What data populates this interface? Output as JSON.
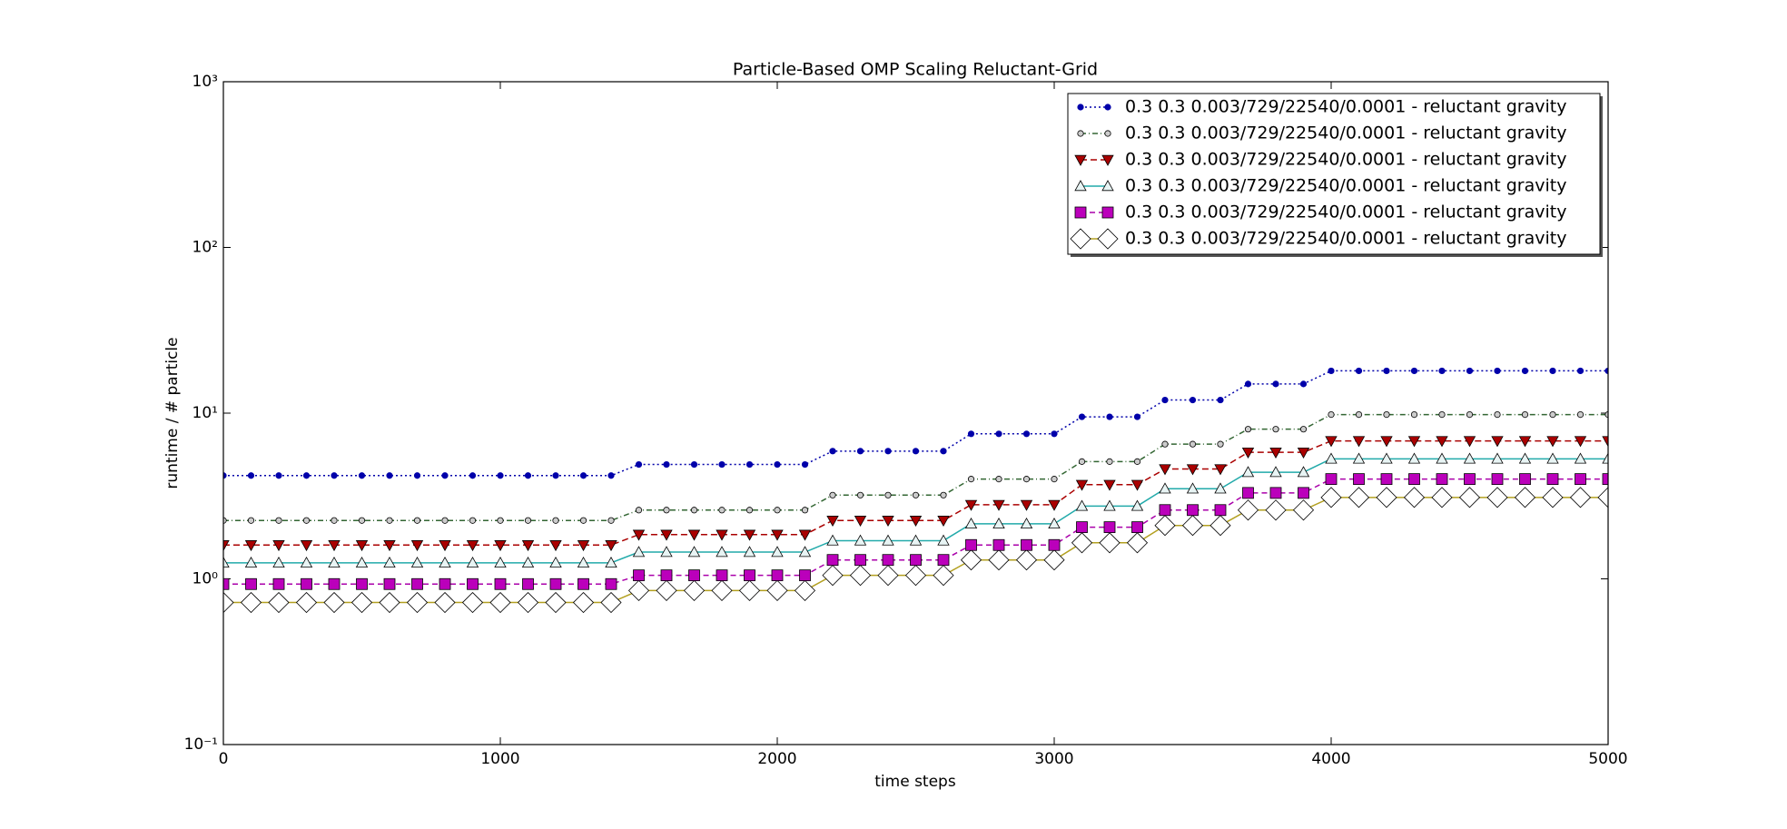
{
  "chart_data": {
    "type": "line",
    "title": "Particle-Based OMP Scaling Reluctant-Grid",
    "x_label": "time steps",
    "y_label": "runtime / # particle",
    "y_log": true,
    "legend": "upper right",
    "xlim": [
      0,
      5000
    ],
    "xticks": [
      0,
      1000,
      2000,
      3000,
      4000,
      5000
    ],
    "ylim": [
      0.1,
      1000
    ],
    "yticks": [
      {
        "value": 0.1,
        "label": "10⁻¹"
      },
      {
        "value": 1,
        "label": "10⁰"
      },
      {
        "value": 10,
        "label": "10¹"
      },
      {
        "value": 100,
        "label": "10²"
      },
      {
        "value": 1000,
        "label": "10³"
      }
    ],
    "x": [
      0,
      100,
      200,
      300,
      400,
      500,
      600,
      700,
      800,
      900,
      1000,
      1100,
      1200,
      1300,
      1400,
      1500,
      1600,
      1700,
      1800,
      1900,
      2000,
      2100,
      2200,
      2300,
      2400,
      2500,
      2600,
      2700,
      2800,
      2900,
      3000,
      3100,
      3200,
      3300,
      3400,
      3500,
      3600,
      3700,
      3800,
      3900,
      4000,
      4100,
      4200,
      4300,
      4400,
      4500,
      4600,
      4700,
      4800,
      4900,
      5000
    ],
    "series": [
      {
        "name": "0.3 0.3 0.003/729/22540/0.0001 - reluctant gravity",
        "color": "#0000aa",
        "marker": "circle",
        "marker_fill": "#0000aa",
        "marker_size": 4,
        "dash": "2,3",
        "values": [
          4.2,
          4.2,
          4.2,
          4.2,
          4.2,
          4.2,
          4.2,
          4.2,
          4.2,
          4.2,
          4.2,
          4.2,
          4.2,
          4.2,
          4.2,
          4.9,
          4.9,
          4.9,
          4.9,
          4.9,
          4.9,
          4.9,
          5.9,
          5.9,
          5.9,
          5.9,
          5.9,
          7.5,
          7.5,
          7.5,
          7.5,
          9.5,
          9.5,
          9.5,
          12,
          12,
          12,
          15,
          15,
          15,
          18,
          18,
          18,
          18,
          18,
          18,
          18,
          18,
          18,
          18,
          18
        ]
      },
      {
        "name": "0.3 0.3 0.003/729/22540/0.0001 - reluctant gravity",
        "color": "#336633",
        "marker": "circle",
        "marker_fill": "#cccccc",
        "marker_size": 4,
        "dash": "6,3,1,3",
        "values": [
          2.25,
          2.25,
          2.25,
          2.25,
          2.25,
          2.25,
          2.25,
          2.25,
          2.25,
          2.25,
          2.25,
          2.25,
          2.25,
          2.25,
          2.25,
          2.6,
          2.6,
          2.6,
          2.6,
          2.6,
          2.6,
          2.6,
          3.2,
          3.2,
          3.2,
          3.2,
          3.2,
          4.0,
          4.0,
          4.0,
          4.0,
          5.1,
          5.1,
          5.1,
          6.5,
          6.5,
          6.5,
          8.0,
          8.0,
          8.0,
          9.8,
          9.8,
          9.8,
          9.8,
          9.8,
          9.8,
          9.8,
          9.8,
          9.8,
          9.8,
          9.8
        ]
      },
      {
        "name": "0.3 0.3 0.003/729/22540/0.0001 - reluctant gravity",
        "color": "#aa0000",
        "marker": "triangle-down",
        "marker_fill": "#aa0000",
        "marker_size": 6,
        "dash": "7,4",
        "values": [
          1.6,
          1.6,
          1.6,
          1.6,
          1.6,
          1.6,
          1.6,
          1.6,
          1.6,
          1.6,
          1.6,
          1.6,
          1.6,
          1.6,
          1.6,
          1.85,
          1.85,
          1.85,
          1.85,
          1.85,
          1.85,
          1.85,
          2.25,
          2.25,
          2.25,
          2.25,
          2.25,
          2.8,
          2.8,
          2.8,
          2.8,
          3.7,
          3.7,
          3.7,
          4.6,
          4.6,
          4.6,
          5.8,
          5.8,
          5.8,
          6.8,
          6.8,
          6.8,
          6.8,
          6.8,
          6.8,
          6.8,
          6.8,
          6.8,
          6.8,
          6.8
        ]
      },
      {
        "name": "0.3 0.3 0.003/729/22540/0.0001 - reluctant gravity",
        "color": "#22aaaa",
        "marker": "triangle-up",
        "marker_fill": "#e8f4f4",
        "marker_size": 6,
        "dash": "none",
        "values": [
          1.25,
          1.25,
          1.25,
          1.25,
          1.25,
          1.25,
          1.25,
          1.25,
          1.25,
          1.25,
          1.25,
          1.25,
          1.25,
          1.25,
          1.25,
          1.45,
          1.45,
          1.45,
          1.45,
          1.45,
          1.45,
          1.45,
          1.7,
          1.7,
          1.7,
          1.7,
          1.7,
          2.15,
          2.15,
          2.15,
          2.15,
          2.75,
          2.75,
          2.75,
          3.5,
          3.5,
          3.5,
          4.4,
          4.4,
          4.4,
          5.3,
          5.3,
          5.3,
          5.3,
          5.3,
          5.3,
          5.3,
          5.3,
          5.3,
          5.3,
          5.3
        ]
      },
      {
        "name": "0.3 0.3 0.003/729/22540/0.0001 - reluctant gravity",
        "color": "#aa00aa",
        "marker": "square",
        "marker_fill": "#bb00bb",
        "marker_size": 6,
        "dash": "6,4",
        "values": [
          0.93,
          0.93,
          0.93,
          0.93,
          0.93,
          0.93,
          0.93,
          0.93,
          0.93,
          0.93,
          0.93,
          0.93,
          0.93,
          0.93,
          0.93,
          1.05,
          1.05,
          1.05,
          1.05,
          1.05,
          1.05,
          1.05,
          1.3,
          1.3,
          1.3,
          1.3,
          1.3,
          1.6,
          1.6,
          1.6,
          1.6,
          2.05,
          2.05,
          2.05,
          2.6,
          2.6,
          2.6,
          3.3,
          3.3,
          3.3,
          4.0,
          4.0,
          4.0,
          4.0,
          4.0,
          4.0,
          4.0,
          4.0,
          4.0,
          4.0,
          4.0
        ]
      },
      {
        "name": "0.3 0.3 0.003/729/22540/0.0001 - reluctant gravity",
        "color": "#b3a020",
        "marker": "diamond",
        "marker_fill": "#ffffff",
        "marker_size": 11,
        "dash": "none",
        "values": [
          0.72,
          0.72,
          0.72,
          0.72,
          0.72,
          0.72,
          0.72,
          0.72,
          0.72,
          0.72,
          0.72,
          0.72,
          0.72,
          0.72,
          0.72,
          0.85,
          0.85,
          0.85,
          0.85,
          0.85,
          0.85,
          0.85,
          1.05,
          1.05,
          1.05,
          1.05,
          1.05,
          1.3,
          1.3,
          1.3,
          1.3,
          1.65,
          1.65,
          1.65,
          2.1,
          2.1,
          2.1,
          2.6,
          2.6,
          2.6,
          3.1,
          3.1,
          3.1,
          3.1,
          3.1,
          3.1,
          3.1,
          3.1,
          3.1,
          3.1,
          3.1
        ]
      }
    ]
  }
}
